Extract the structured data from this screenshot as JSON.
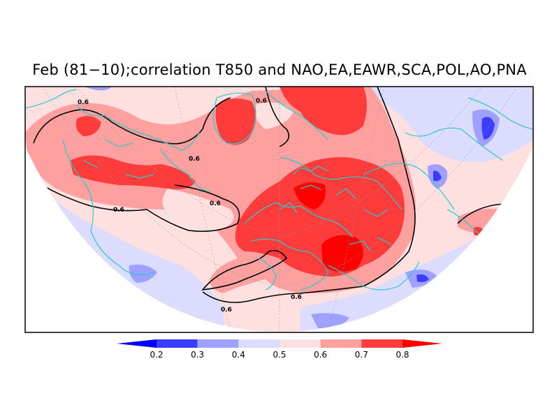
{
  "title": "Feb (81−10);correlation T850 and NAO,EA,EAWR,SCA,POL,AO,PNA",
  "contour_value": "0.6",
  "colorbar": {
    "levels": [
      "0.2",
      "0.3",
      "0.4",
      "0.5",
      "0.6",
      "0.7",
      "0.8"
    ],
    "colors": [
      "#0000ff",
      "#3c3cff",
      "#a0a0ff",
      "#dcdcff",
      "#ffe0e0",
      "#ffa0a0",
      "#ff3c3c",
      "#ff0000"
    ]
  },
  "palette": {
    "background": "#ffffff",
    "coast": "#2ec8c8",
    "light_blue": "#dcdcff",
    "medium_blue": "#a0a0ff",
    "blue": "#3c3cff",
    "light_pink": "#ffe0e0",
    "pink": "#ffa0a0",
    "red": "#ff3c3c"
  }
}
